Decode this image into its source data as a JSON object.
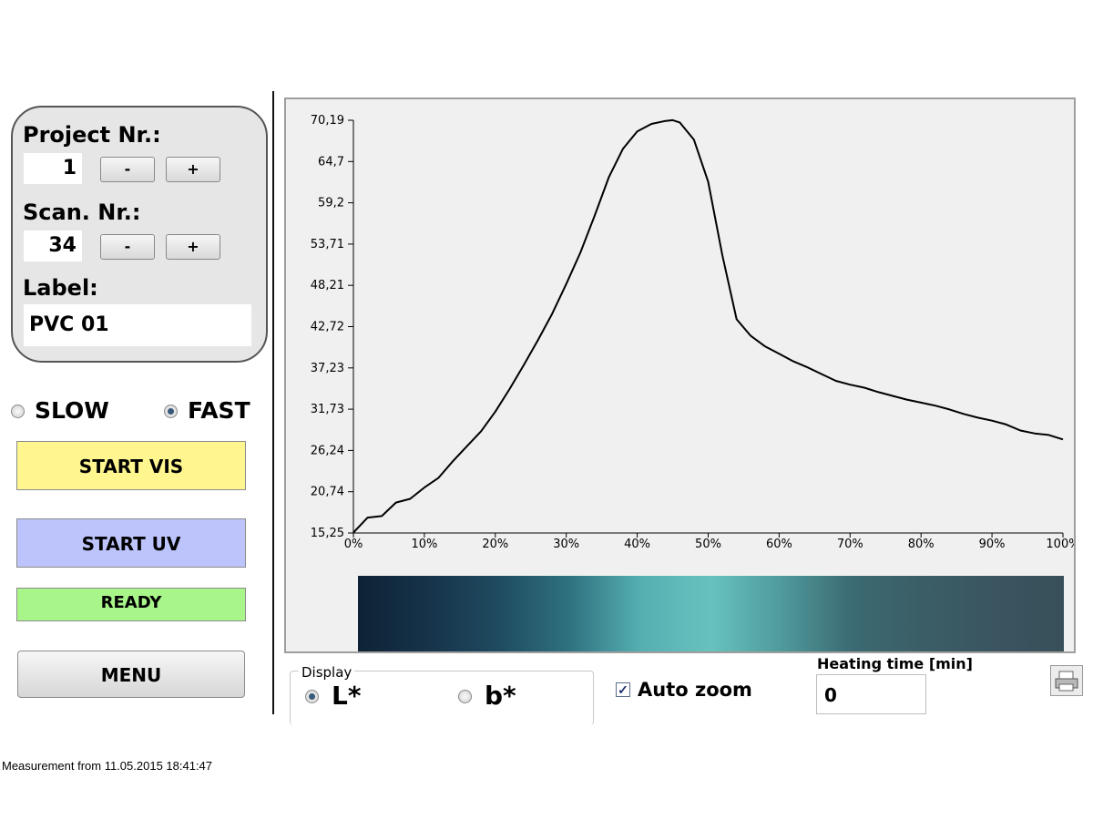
{
  "project_panel": {
    "project_label": "Project Nr.:",
    "project_value": "1",
    "scan_label": "Scan. Nr.:",
    "scan_value": "34",
    "minus": "-",
    "plus": "+",
    "label_label": "Label:",
    "label_value": "PVC 01"
  },
  "speed": {
    "slow_label": "SLOW",
    "fast_label": "FAST",
    "selected": "FAST"
  },
  "buttons": {
    "start_vis": "START VIS",
    "start_uv": "START UV",
    "status": "READY",
    "menu": "MENU"
  },
  "colors": {
    "start_vis_bg": "#fff68f",
    "start_uv_bg": "#bcc4fb",
    "ready_bg": "#a8f58a",
    "curve": "#000000"
  },
  "display": {
    "legend": "Display",
    "option_l": "L*",
    "option_b": "b*",
    "selected": "L*"
  },
  "auto_zoom": {
    "label": "Auto zoom",
    "checked": true,
    "check_glyph": "✓"
  },
  "heating": {
    "label": "Heating time [min]",
    "value": "0"
  },
  "print_icon": "printer-icon",
  "footer": "Measurement from 11.05.2015 18:41:47",
  "chart_data": {
    "type": "line",
    "y_ticks": [
      "15,25",
      "20,74",
      "26,24",
      "31,73",
      "37,23",
      "42,72",
      "48,21",
      "53,71",
      "59,2",
      "64,7",
      "70,19"
    ],
    "x_ticks": [
      "0%",
      "10%",
      "20%",
      "30%",
      "40%",
      "50%",
      "60%",
      "70%",
      "80%",
      "90%",
      "100%"
    ],
    "ylim": [
      15.25,
      70.19
    ],
    "xlim": [
      0,
      100
    ],
    "x": [
      0,
      2,
      4,
      6,
      8,
      10,
      12,
      14,
      16,
      18,
      20,
      22,
      24,
      26,
      28,
      30,
      32,
      34,
      36,
      38,
      40,
      42,
      44,
      45,
      46,
      48,
      50,
      52,
      54,
      56,
      58,
      60,
      62,
      64,
      66,
      68,
      70,
      72,
      74,
      76,
      78,
      80,
      82,
      84,
      86,
      88,
      90,
      92,
      94,
      96,
      98,
      100
    ],
    "y": [
      15.3,
      17.3,
      17.5,
      19.3,
      19.8,
      21.3,
      22.6,
      24.8,
      26.8,
      28.8,
      31.4,
      34.4,
      37.6,
      40.9,
      44.4,
      48.4,
      52.6,
      57.5,
      62.6,
      66.4,
      68.7,
      69.7,
      70.1,
      70.2,
      69.9,
      67.6,
      62.0,
      52.2,
      43.7,
      41.5,
      40.1,
      39.1,
      38.1,
      37.3,
      36.4,
      35.5,
      35.0,
      34.6,
      34.0,
      33.5,
      33.0,
      32.6,
      32.2,
      31.7,
      31.1,
      30.6,
      30.2,
      29.7,
      28.9,
      28.5,
      28.3,
      27.7
    ],
    "color_strip": [
      "#0e2236",
      "#16334a",
      "#1f4b60",
      "#2f7280",
      "#55afb1",
      "#67c2be",
      "#4f9a9c",
      "#3b6a72",
      "#3b5e66",
      "#3a5560",
      "#37505a"
    ]
  }
}
